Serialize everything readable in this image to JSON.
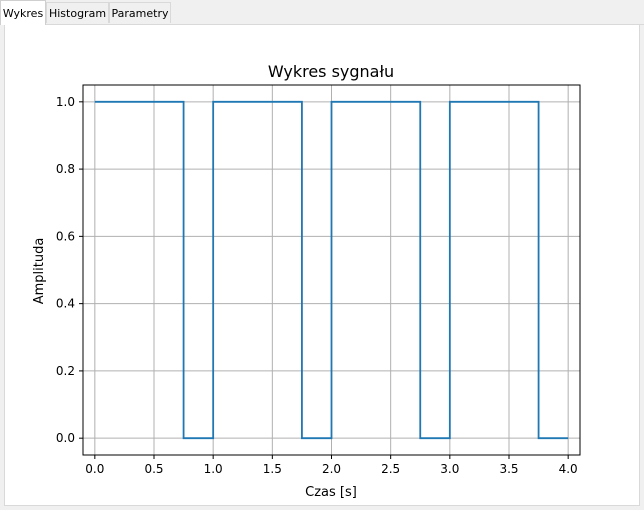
{
  "tabs": [
    {
      "label": "Wykres"
    },
    {
      "label": "Histogram"
    },
    {
      "label": "Parametry"
    }
  ],
  "colors": {
    "line": "#1f77b4",
    "grid": "#b0b0b0"
  },
  "chart_data": {
    "type": "line",
    "title": "Wykres sygnału",
    "xlabel": "Czas [s]",
    "ylabel": "Amplituda",
    "xlim": [
      -0.1,
      4.1
    ],
    "ylim": [
      -0.05,
      1.05
    ],
    "xticks": [
      0.0,
      0.5,
      1.0,
      1.5,
      2.0,
      2.5,
      3.0,
      3.5,
      4.0
    ],
    "xtick_labels": [
      "0.0",
      "0.5",
      "1.0",
      "1.5",
      "2.0",
      "2.5",
      "3.0",
      "3.5",
      "4.0"
    ],
    "yticks": [
      0.0,
      0.2,
      0.4,
      0.6,
      0.8,
      1.0
    ],
    "ytick_labels": [
      "0.0",
      "0.2",
      "0.4",
      "0.6",
      "0.8",
      "1.0"
    ],
    "grid": true,
    "series": [
      {
        "x": [
          0.0,
          0.75,
          0.75,
          1.0,
          1.0,
          1.75,
          1.75,
          2.0,
          2.0,
          2.75,
          2.75,
          3.0,
          3.0,
          3.75,
          3.75,
          4.0
        ],
        "y": [
          1,
          1,
          0,
          0,
          1,
          1,
          0,
          0,
          1,
          1,
          0,
          0,
          1,
          1,
          0,
          0
        ]
      }
    ]
  }
}
